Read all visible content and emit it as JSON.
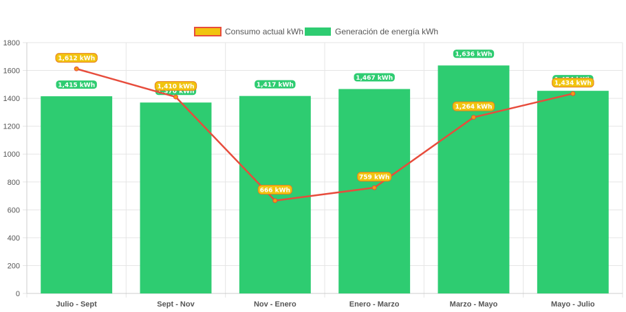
{
  "chart_data": {
    "type": "bar",
    "categories": [
      "Julio - Sept",
      "Sept - Nov",
      "Nov - Enero",
      "Enero - Marzo",
      "Marzo - Mayo",
      "Mayo - Julio"
    ],
    "series": [
      {
        "name": "Consumo actual kWh",
        "type": "line",
        "values": [
          1612,
          1410,
          666,
          759,
          1264,
          1434
        ],
        "labels": [
          "1,612 kWh",
          "1,410 kWh",
          "666 kWh",
          "759 kWh",
          "1,264 kWh",
          "1,434 kWh"
        ],
        "line_color": "#e74c3c",
        "point_color": "#f39c12",
        "label_bg": "#f1c40f",
        "label_border": "#e67e22"
      },
      {
        "name": "Generación de energía kWh",
        "type": "bar",
        "values": [
          1415,
          1370,
          1417,
          1467,
          1636,
          1454
        ],
        "labels": [
          "1,415 kWh",
          "1,370 kWh",
          "1,417 kWh",
          "1,467 kWh",
          "1,636 kWh",
          "1,454 kWh"
        ],
        "color": "#2ecc71"
      }
    ],
    "ylim": [
      0,
      1800
    ],
    "yticks": [
      0,
      200,
      400,
      600,
      800,
      1000,
      1200,
      1400,
      1600,
      1800
    ],
    "grid": true,
    "legend_position": "top"
  }
}
